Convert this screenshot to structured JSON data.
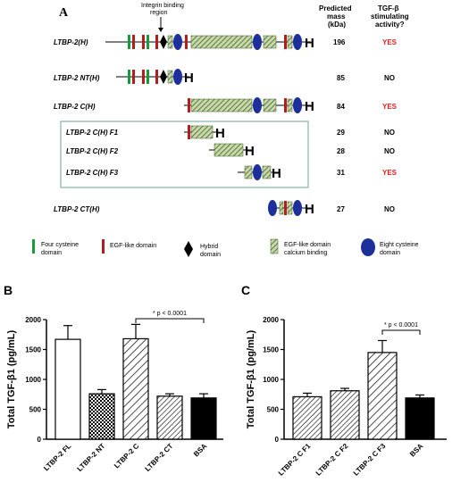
{
  "panelA": {
    "letter": "A",
    "integrin_label": "Integrin binding region",
    "header_mass": "Predicted mass (kDa)",
    "header_activity": "TGF-β stimulating activity?",
    "rows": [
      {
        "label": "LTBP-2(H)",
        "mass": "196",
        "activity": "YES"
      },
      {
        "label": "LTBP-2 NT(H)",
        "mass": "85",
        "activity": "NO"
      },
      {
        "label": "LTBP-2 C(H)",
        "mass": "84",
        "activity": "YES"
      },
      {
        "label": "LTBP-2 C(H)  F1",
        "mass": "29",
        "activity": "NO"
      },
      {
        "label": "LTBP-2 C(H)  F2",
        "mass": "28",
        "activity": "NO"
      },
      {
        "label": "LTBP-2 C(H)  F3",
        "mass": "31",
        "activity": "YES"
      },
      {
        "label": "LTBP-2 CT(H)",
        "mass": "27",
        "activity": "NO"
      }
    ],
    "legend": [
      {
        "text": "Four cysteine domain",
        "icon": "green-bar-icon",
        "color": "#1a9a3a"
      },
      {
        "text": "EGF-like domain",
        "icon": "red-bar-icon",
        "color": "#b01e1e"
      },
      {
        "text": "Hybrid domain",
        "icon": "diamond-icon",
        "color": "#000000"
      },
      {
        "text": "EGF-like domain calcium binding",
        "icon": "hatched-rect-icon",
        "color": "#9bb86a"
      },
      {
        "text": "Eight cysteine domain",
        "icon": "blue-ellipse-icon",
        "color": "#1d2f9a"
      }
    ]
  },
  "chart_data": [
    {
      "panel": "B",
      "type": "bar",
      "categories": [
        "LTBP-2 FL",
        "LTBP-2 NT",
        "LTBP-2 C",
        "LTBP-2 CT",
        "BSA"
      ],
      "values": [
        1670,
        760,
        1680,
        720,
        690
      ],
      "errors": [
        230,
        70,
        240,
        40,
        70
      ],
      "fills": [
        "white",
        "checker",
        "hatch",
        "hatch-dense",
        "black"
      ],
      "ylabel": "Total TGF-β1 (pg/mL)",
      "ylim": [
        0,
        2000
      ],
      "yticks": [
        "0",
        "500",
        "1000",
        "1500",
        "2000"
      ],
      "annotation": "* p < 0.0001"
    },
    {
      "panel": "C",
      "type": "bar",
      "categories": [
        "LTBP-2 C F1",
        "LTBP-2 C F2",
        "LTBP-2 C F3",
        "BSA"
      ],
      "values": [
        710,
        810,
        1450,
        690
      ],
      "errors": [
        60,
        40,
        200,
        50
      ],
      "fills": [
        "hatch-dense",
        "hatch-dense",
        "hatch",
        "black"
      ],
      "ylabel": "Total TGF-β1 (pg/mL)",
      "ylim": [
        0,
        2000
      ],
      "yticks": [
        "0",
        "500",
        "1000",
        "1500",
        "2000"
      ],
      "annotation": "* p < 0.0001"
    }
  ],
  "colors": {
    "green": "#1a9a3a",
    "red": "#b01e1e",
    "blue": "#1d2f9a",
    "egfca": "#9bb86a",
    "yes": "#e02020",
    "box": "#7fb3a6"
  }
}
